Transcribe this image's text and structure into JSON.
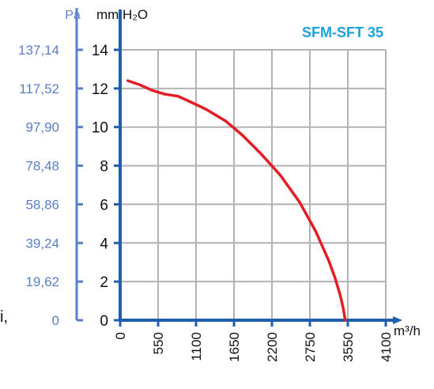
{
  "chart_data": {
    "type": "line",
    "title": "SFM-SFT 35",
    "left_unit_label": "Pa",
    "ylabel": "mm H₂O",
    "xlabel": "m³/h",
    "xlim": [
      0,
      3550
    ],
    "ylim": [
      0,
      14
    ],
    "x_ticks": [
      "0",
      "550",
      "1100",
      "1650",
      "2200",
      "2750",
      "3550",
      "4100"
    ],
    "y_ticks": [
      "0",
      "2",
      "4",
      "6",
      "8",
      "10",
      "12",
      "14"
    ],
    "pa_ticks": [
      "0",
      "19,62",
      "39,24",
      "58,86",
      "78,48",
      "97,90",
      "117,52",
      "137,14"
    ],
    "grid": true,
    "curve_color": "#e31e24",
    "axis_color": "#1f5fb0",
    "pa_color": "#5a7fc6",
    "title_color": "#1aa1dc",
    "series": [
      {
        "x": [
          120,
          300,
          500,
          700,
          900,
          1100,
          1350,
          1650,
          1900,
          2200,
          2500,
          2800,
          3050,
          3250,
          3350,
          3430,
          3480,
          3500,
          3510
        ],
        "y": [
          12.4,
          12.2,
          11.9,
          11.7,
          11.6,
          11.3,
          10.9,
          10.3,
          9.6,
          8.6,
          7.5,
          6.1,
          4.6,
          3.1,
          2.2,
          1.3,
          0.6,
          0.2,
          0.0
        ]
      }
    ]
  },
  "page": {
    "stray_text": "i,"
  }
}
